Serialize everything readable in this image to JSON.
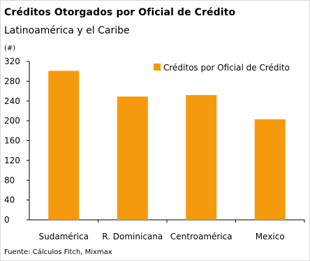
{
  "title": "Créditos Otorgados por Oficial de Crédito",
  "subtitle": "Latinoamérica y el Caribe",
  "unit_label": "(#)",
  "source": "Fuente: Cálculos Fitch, Mixmax",
  "chart_data": {
    "type": "bar",
    "categories": [
      "Sudamérica",
      "R. Dominicana",
      "Centroamérica",
      "Mexico"
    ],
    "series": [
      {
        "name": "Créditos por Oficial de Crédito",
        "values": [
          301,
          249,
          252,
          203
        ],
        "color": "#f59a0c"
      }
    ],
    "ylim": [
      0,
      320
    ],
    "yticks": [
      0,
      40,
      80,
      120,
      160,
      200,
      240,
      280,
      320
    ],
    "legend_position": "top-right",
    "grid": false
  }
}
